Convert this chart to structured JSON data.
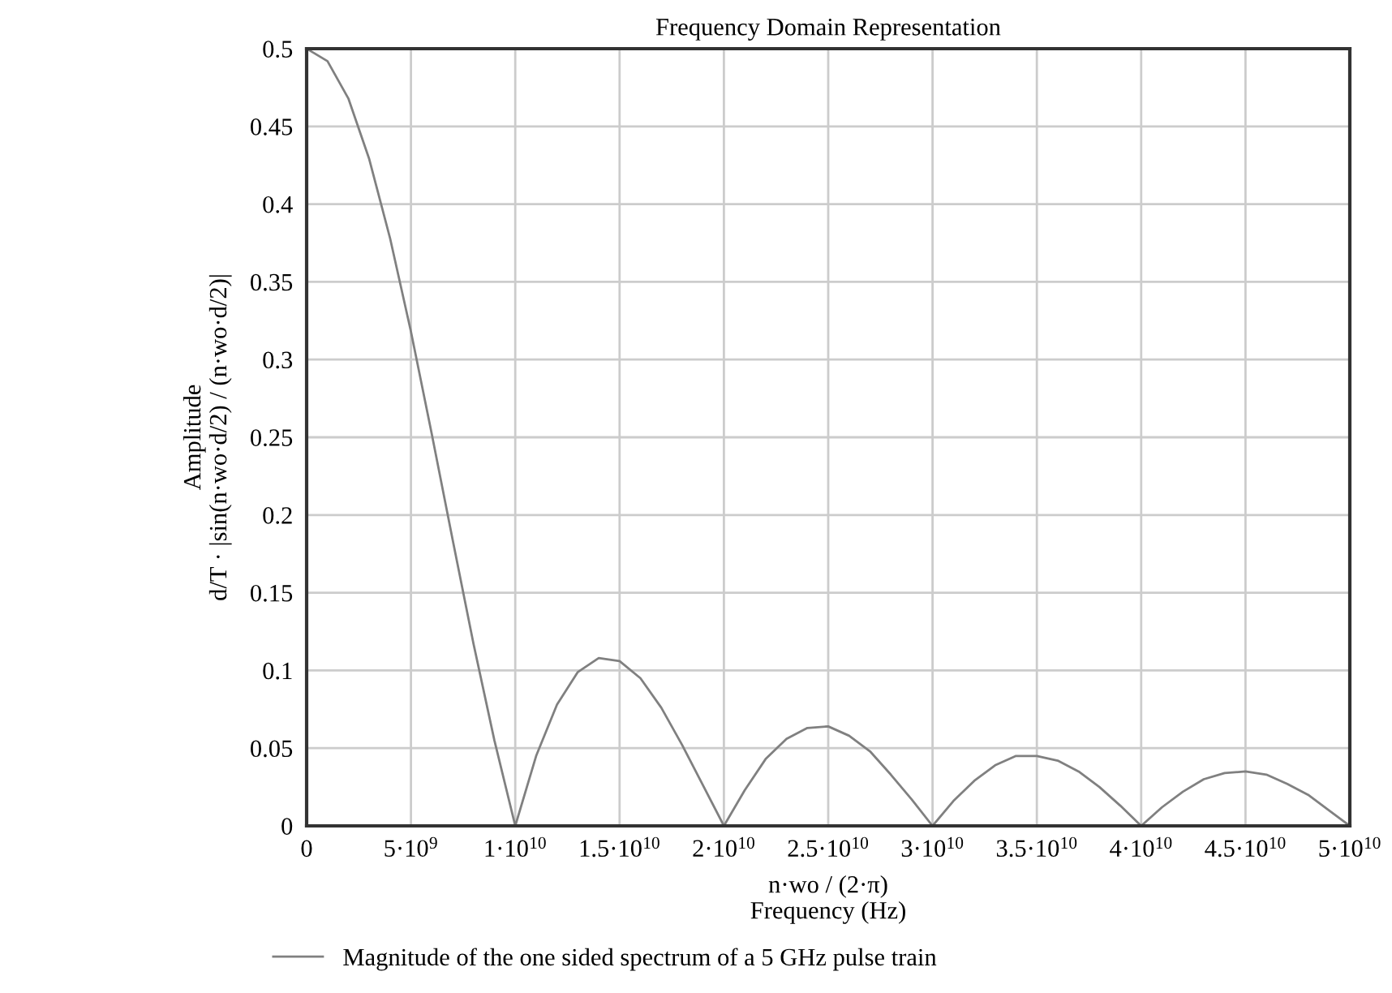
{
  "chart_data": {
    "type": "line",
    "title": "Frequency Domain Representation",
    "xlabel": "n·wo / (2·π)\nFrequency (Hz)",
    "ylabel": "Amplitude\nd/T · |sin(n·wo·d/2) / (n·wo·d/2)|",
    "x": [
      0,
      1000000000.0,
      2000000000.0,
      3000000000.0,
      4000000000.0,
      5000000000.0,
      6000000000.0,
      7000000000.0,
      8000000000.0,
      9000000000.0,
      10000000000.0,
      11000000000.0,
      12000000000.0,
      13000000000.0,
      14000000000.0,
      15000000000.0,
      16000000000.0,
      17000000000.0,
      18000000000.0,
      19000000000.0,
      20000000000.0,
      21000000000.0,
      22000000000.0,
      23000000000.0,
      24000000000.0,
      25000000000.0,
      26000000000.0,
      27000000000.0,
      28000000000.0,
      29000000000.0,
      30000000000.0,
      31000000000.0,
      32000000000.0,
      33000000000.0,
      34000000000.0,
      35000000000.0,
      36000000000.0,
      37000000000.0,
      38000000000.0,
      39000000000.0,
      40000000000.0,
      41000000000.0,
      42000000000.0,
      43000000000.0,
      44000000000.0,
      45000000000.0,
      46000000000.0,
      47000000000.0,
      48000000000.0,
      49000000000.0,
      50000000000.0
    ],
    "series": [
      {
        "name": "Magnitude of the one sided spectrum of a 5 GHz pulse train",
        "color": "#808080",
        "values": [
          0.5,
          0.492,
          0.468,
          0.429,
          0.378,
          0.318,
          0.252,
          0.184,
          0.117,
          0.055,
          0,
          0.045,
          0.078,
          0.099,
          0.108,
          0.106,
          0.095,
          0.076,
          0.052,
          0.026,
          0,
          0.023,
          0.043,
          0.056,
          0.063,
          0.064,
          0.058,
          0.048,
          0.033,
          0.017,
          0,
          0.016,
          0.029,
          0.039,
          0.045,
          0.045,
          0.042,
          0.035,
          0.025,
          0.013,
          0,
          0.012,
          0.022,
          0.03,
          0.034,
          0.035,
          0.033,
          0.027,
          0.02,
          0.01,
          0
        ]
      }
    ],
    "xlim": [
      0,
      50000000000.0
    ],
    "ylim": [
      0,
      0.5
    ],
    "xticks": [
      0,
      {
        "value": 5000000000.0,
        "label": "5·10$^{9}$"
      },
      {
        "value": 10000000000.0,
        "label": "1·10$^{10}$"
      },
      {
        "value": 15000000000.0,
        "label": "1.5·10$^{10}$"
      },
      {
        "value": 20000000000.0,
        "label": "2·10$^{10}$"
      },
      {
        "value": 25000000000.0,
        "label": "2.5·10$^{10}$"
      },
      {
        "value": 30000000000.0,
        "label": "3·10$^{10}$"
      },
      {
        "value": 35000000000.0,
        "label": "3.5·10$^{10}$"
      },
      {
        "value": 40000000000.0,
        "label": "4·10$^{10}$"
      },
      {
        "value": 45000000000.0,
        "label": "4.5·10$^{10}$"
      },
      {
        "value": 50000000000.0,
        "label": "5·10$^{10}$"
      }
    ],
    "yticks": [
      0,
      0.05,
      0.1,
      0.15,
      0.2,
      0.25,
      0.3,
      0.35,
      0.4,
      0.45,
      0.5
    ],
    "grid": true,
    "legend": "bottom left",
    "marker": "none",
    "line_style": "solid"
  }
}
